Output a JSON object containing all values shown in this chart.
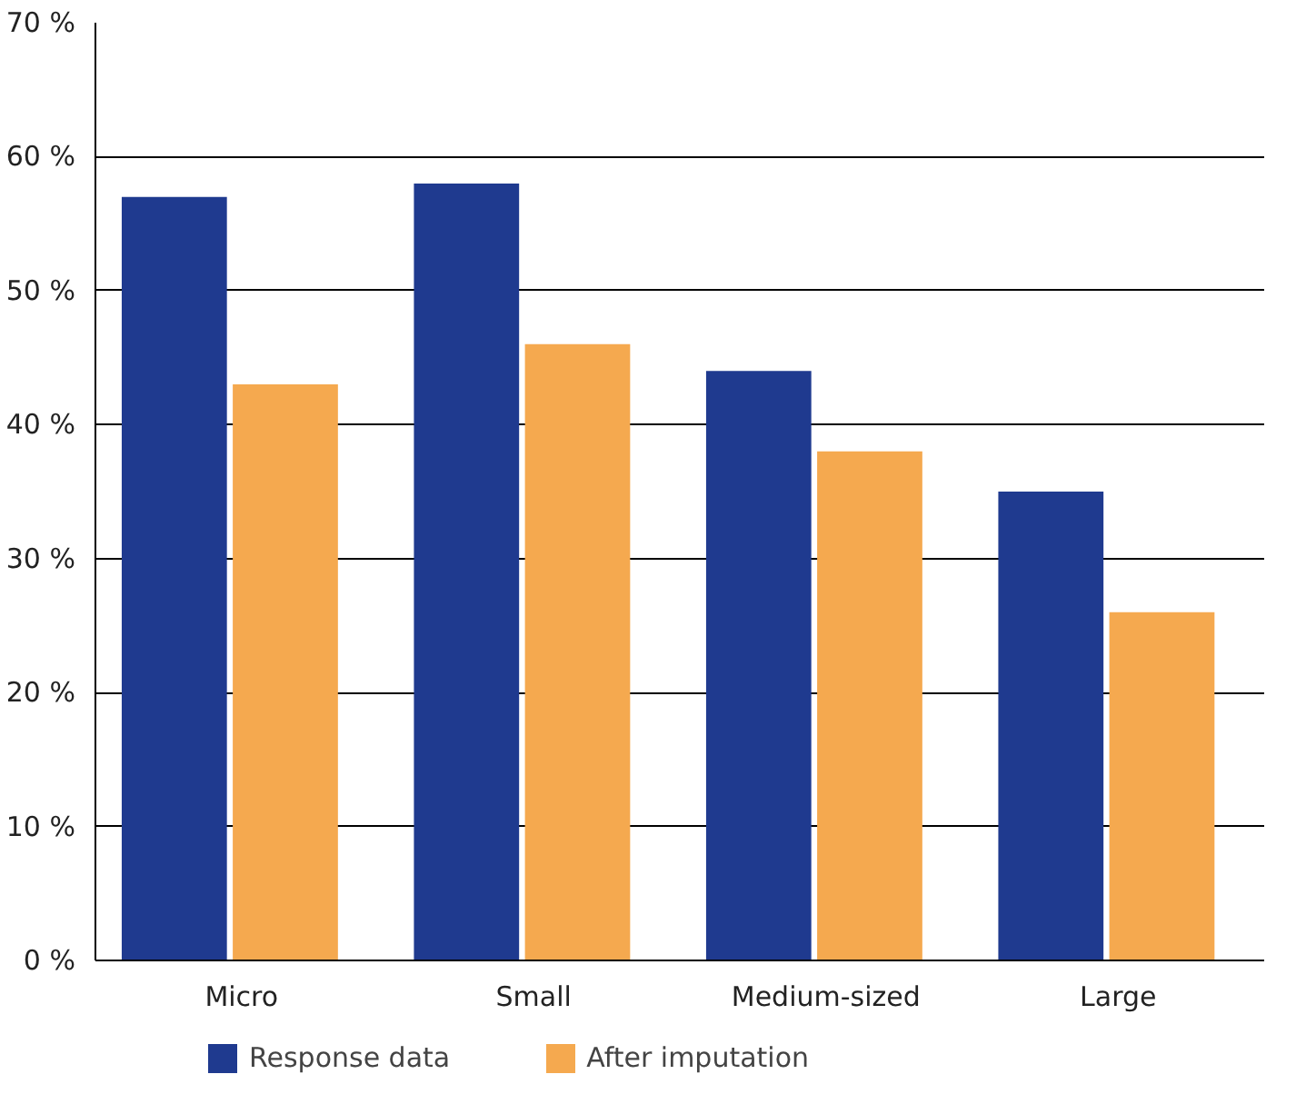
{
  "chart_data": {
    "type": "bar",
    "categories": [
      "Micro",
      "Small",
      "Medium-sized",
      "Large"
    ],
    "series": [
      {
        "name": "Response data",
        "color": "#1f3a8f",
        "values": [
          57,
          58,
          44,
          35
        ]
      },
      {
        "name": "After imputation",
        "color": "#f5a94f",
        "values": [
          43,
          46,
          38,
          26
        ]
      }
    ],
    "ylim": [
      0,
      70
    ],
    "yticks": [
      {
        "value": 0,
        "label": "0 %"
      },
      {
        "value": 10,
        "label": "10 %"
      },
      {
        "value": 20,
        "label": "20 %"
      },
      {
        "value": 30,
        "label": "30 %"
      },
      {
        "value": 40,
        "label": "40 %"
      },
      {
        "value": 50,
        "label": "50 %"
      },
      {
        "value": 60,
        "label": "60 %"
      },
      {
        "value": 70,
        "label": "70 %"
      }
    ],
    "grid": "y",
    "legend": "bottom"
  }
}
